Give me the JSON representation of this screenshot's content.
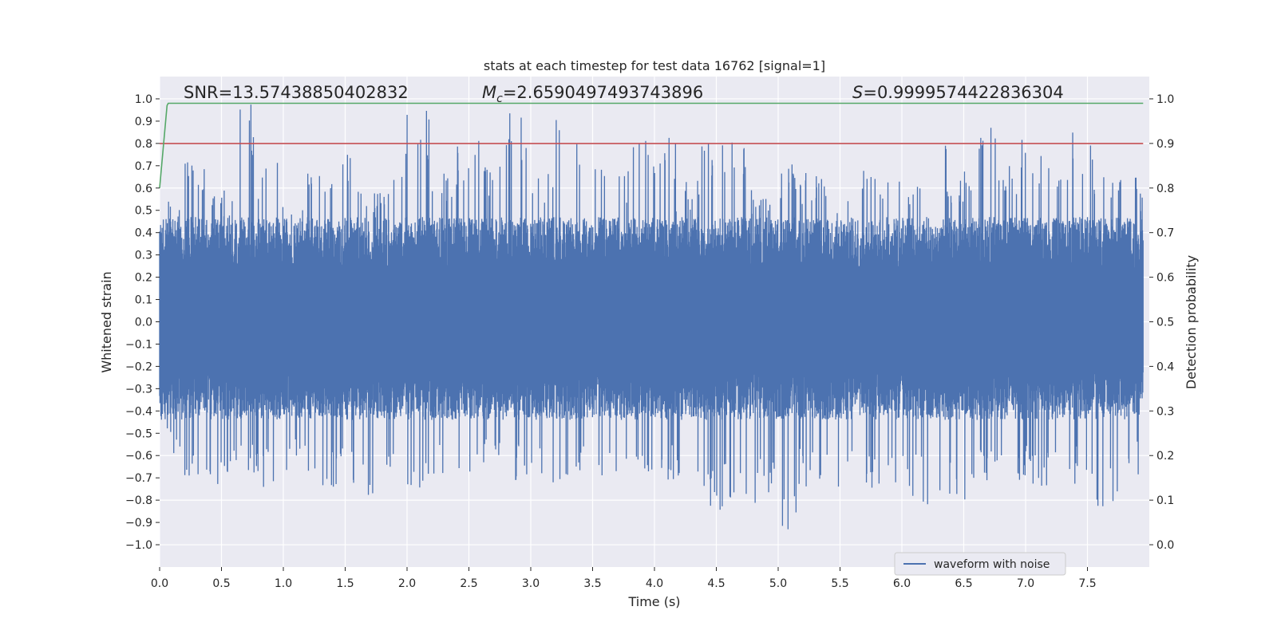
{
  "chart_data": {
    "type": "line",
    "title": "stats at each timestep for test data 16762 [signal=1]",
    "xlabel": "Time (s)",
    "ylabel_left": "Whitened strain",
    "ylabel_right": "Detection probability",
    "xlim": [
      0.0,
      8.0
    ],
    "ylim_left": [
      -1.1,
      1.1
    ],
    "ylim_right": [
      0.0,
      1.0
    ],
    "x_ticks": [
      "0.0",
      "0.5",
      "1.0",
      "1.5",
      "2.0",
      "2.5",
      "3.0",
      "3.5",
      "4.0",
      "4.5",
      "5.0",
      "5.5",
      "6.0",
      "6.5",
      "7.0",
      "7.5"
    ],
    "y_ticks_left": [
      "1.0",
      "0.9",
      "0.8",
      "0.7",
      "0.6",
      "0.5",
      "0.4",
      "0.3",
      "0.2",
      "0.1",
      "0.0",
      "−0.1",
      "−0.2",
      "−0.3",
      "−0.4",
      "−0.5",
      "−0.6",
      "−0.7",
      "−0.8",
      "−0.9",
      "−1.0"
    ],
    "y_ticks_right": [
      "1.0",
      "0.9",
      "0.8",
      "0.7",
      "0.6",
      "0.5",
      "0.4",
      "0.3",
      "0.2",
      "0.1",
      "0.0"
    ],
    "grid": true,
    "legend": {
      "placement": "lower-right",
      "entries": [
        "waveform with noise"
      ]
    },
    "annotations": {
      "snr": "SNR=13.57438850402832",
      "mc_symbol": "M",
      "mc_sub": "c",
      "mc_value": "=2.6590497493743896",
      "s_symbol": "S",
      "s_value": "=0.9999574422836304"
    },
    "series": [
      {
        "name": "waveform with noise",
        "axis": "left",
        "color": "#4c72b0",
        "envelope_max": [
          0.55,
          0.72,
          0.62,
          0.98,
          0.72,
          0.62,
          0.68,
          0.8,
          0.62,
          0.68,
          0.95,
          0.67,
          0.82,
          0.7,
          0.94,
          0.68,
          0.95,
          0.72,
          0.68,
          0.86,
          0.84,
          0.65,
          0.86,
          0.85,
          0.62,
          0.72,
          0.68,
          0.64,
          0.72,
          0.71,
          0.65,
          0.93,
          0.68,
          0.95,
          0.72,
          0.82,
          0.74,
          0.86,
          0.72,
          0.66
        ],
        "envelope_min": [
          -0.6,
          -0.72,
          -0.74,
          -0.7,
          -0.76,
          -0.7,
          -0.74,
          -0.75,
          -0.78,
          -0.72,
          -0.79,
          -0.7,
          -0.77,
          -0.7,
          -0.72,
          -0.74,
          -0.72,
          -0.7,
          -0.72,
          -0.77,
          -0.72,
          -0.74,
          -0.85,
          -0.8,
          -0.82,
          -0.99,
          -0.74,
          -0.79,
          -0.75,
          -0.74,
          -0.79,
          -0.83,
          -0.8,
          -0.76,
          -0.72,
          -0.74,
          -0.78,
          -0.74,
          -0.87,
          -0.7
        ]
      },
      {
        "name": "",
        "axis": "right",
        "color": "#55a868",
        "x": [
          0.0,
          0.06,
          0.07,
          7.95
        ],
        "y": [
          0.8,
          0.985,
          0.99,
          0.99
        ]
      },
      {
        "name": "",
        "axis": "right",
        "color": "#c44e52",
        "x": [
          0.0,
          7.95
        ],
        "y": [
          0.9,
          0.9
        ]
      }
    ]
  }
}
